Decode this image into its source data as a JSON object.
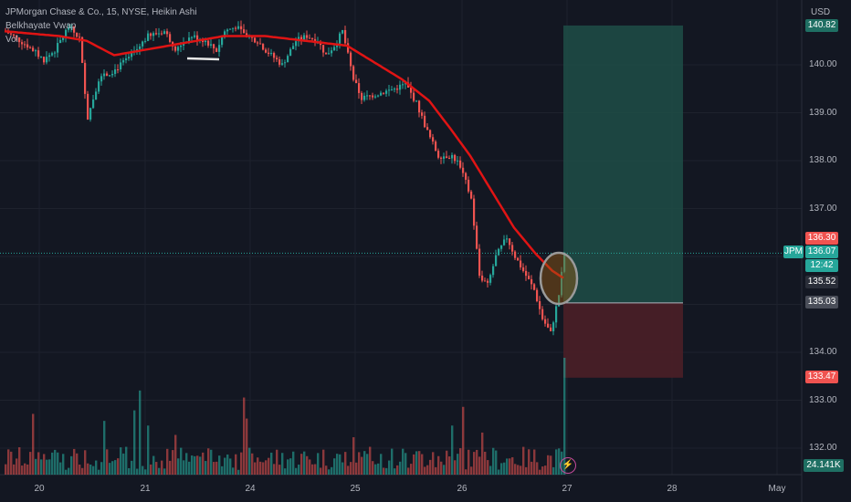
{
  "legend": {
    "title": "JPMorgan Chase & Co., 15, NYSE, Heikin Ashi",
    "indicator1": "Belkhayate Vwap",
    "indicator2": "Vol"
  },
  "axis": {
    "currency": "USD",
    "y_ticks": [
      "140.00",
      "139.00",
      "138.00",
      "137.00",
      "136.00",
      "135.00",
      "134.00",
      "133.00",
      "132.00"
    ],
    "x_ticks": [
      "20",
      "21",
      "24",
      "25",
      "26",
      "27",
      "28",
      "May"
    ]
  },
  "tags": {
    "top": "140.82",
    "stop_upper": "136.30",
    "symbol": "JPM",
    "last_price": "136.07",
    "countdown": "12:42",
    "price2": "135.52",
    "entry": "135.03",
    "stop": "133.47",
    "volume": "24.141K"
  },
  "colors": {
    "background": "#131722",
    "up": "#26a69a",
    "down": "#ef5350",
    "vwap": "#e01414",
    "target_zone": "#1e4d46",
    "stop_zone": "#4b1f27"
  },
  "chart_data": {
    "type": "candlestick",
    "symbol": "JPM",
    "interval": "15",
    "ylim": [
      131.6,
      141.2
    ],
    "x_labels": [
      "20",
      "21",
      "24",
      "25",
      "26",
      "27",
      "28",
      "May"
    ],
    "price_anchors": [
      {
        "bar": 0,
        "price": 140.7
      },
      {
        "bar": 8,
        "price": 140.4
      },
      {
        "bar": 14,
        "price": 140.1
      },
      {
        "bar": 18,
        "price": 140.3
      },
      {
        "bar": 23,
        "price": 140.8
      },
      {
        "bar": 27,
        "price": 140.55
      },
      {
        "bar": 30,
        "price": 138.9
      },
      {
        "bar": 34,
        "price": 139.7
      },
      {
        "bar": 40,
        "price": 139.9
      },
      {
        "bar": 46,
        "price": 140.2
      },
      {
        "bar": 52,
        "price": 140.6
      },
      {
        "bar": 58,
        "price": 140.7
      },
      {
        "bar": 62,
        "price": 140.35
      },
      {
        "bar": 68,
        "price": 140.6
      },
      {
        "bar": 73,
        "price": 140.5
      },
      {
        "bar": 77,
        "price": 140.3
      },
      {
        "bar": 80,
        "price": 140.7
      },
      {
        "bar": 84,
        "price": 140.8
      },
      {
        "bar": 88,
        "price": 140.6
      },
      {
        "bar": 92,
        "price": 140.5
      },
      {
        "bar": 95,
        "price": 140.3
      },
      {
        "bar": 101,
        "price": 140.0
      },
      {
        "bar": 106,
        "price": 140.5
      },
      {
        "bar": 110,
        "price": 140.6
      },
      {
        "bar": 114,
        "price": 140.5
      },
      {
        "bar": 117,
        "price": 140.2
      },
      {
        "bar": 120,
        "price": 140.4
      },
      {
        "bar": 123,
        "price": 140.7
      },
      {
        "bar": 127,
        "price": 139.7
      },
      {
        "bar": 130,
        "price": 139.3
      },
      {
        "bar": 136,
        "price": 139.4
      },
      {
        "bar": 142,
        "price": 139.5
      },
      {
        "bar": 146,
        "price": 139.6
      },
      {
        "bar": 150,
        "price": 139.2
      },
      {
        "bar": 154,
        "price": 138.6
      },
      {
        "bar": 158,
        "price": 138.1
      },
      {
        "bar": 163,
        "price": 138.1
      },
      {
        "bar": 166,
        "price": 137.9
      },
      {
        "bar": 170,
        "price": 137.2
      },
      {
        "bar": 173,
        "price": 135.6
      },
      {
        "bar": 176,
        "price": 135.4
      },
      {
        "bar": 179,
        "price": 136.0
      },
      {
        "bar": 183,
        "price": 136.4
      },
      {
        "bar": 186,
        "price": 136.0
      },
      {
        "bar": 190,
        "price": 135.6
      },
      {
        "bar": 193,
        "price": 135.3
      },
      {
        "bar": 196,
        "price": 134.7
      },
      {
        "bar": 199,
        "price": 134.4
      },
      {
        "bar": 202,
        "price": 135.2
      },
      {
        "bar": 204,
        "price": 136.07
      }
    ],
    "vwap_anchors": [
      {
        "bar": 0,
        "price": 140.7
      },
      {
        "bar": 20,
        "price": 140.6
      },
      {
        "bar": 30,
        "price": 140.5
      },
      {
        "bar": 40,
        "price": 140.2
      },
      {
        "bar": 60,
        "price": 140.4
      },
      {
        "bar": 80,
        "price": 140.6
      },
      {
        "bar": 95,
        "price": 140.6
      },
      {
        "bar": 110,
        "price": 140.5
      },
      {
        "bar": 125,
        "price": 140.4
      },
      {
        "bar": 135,
        "price": 140.05
      },
      {
        "bar": 145,
        "price": 139.7
      },
      {
        "bar": 155,
        "price": 139.25
      },
      {
        "bar": 163,
        "price": 138.65
      },
      {
        "bar": 170,
        "price": 138.1
      },
      {
        "bar": 178,
        "price": 137.35
      },
      {
        "bar": 186,
        "price": 136.6
      },
      {
        "bar": 194,
        "price": 136.05
      },
      {
        "bar": 200,
        "price": 135.7
      },
      {
        "bar": 204,
        "price": 135.55
      }
    ],
    "volume_spikes": [
      {
        "bar": 10,
        "value": 0.52
      },
      {
        "bar": 36,
        "value": 0.46
      },
      {
        "bar": 47,
        "value": 0.55
      },
      {
        "bar": 49,
        "value": 0.72
      },
      {
        "bar": 52,
        "value": 0.42
      },
      {
        "bar": 62,
        "value": 0.34
      },
      {
        "bar": 87,
        "value": 0.66
      },
      {
        "bar": 88,
        "value": 0.48
      },
      {
        "bar": 127,
        "value": 0.32
      },
      {
        "bar": 163,
        "value": 0.42
      },
      {
        "bar": 167,
        "value": 0.58
      },
      {
        "bar": 174,
        "value": 0.36
      },
      {
        "bar": 204,
        "value": 1.0
      }
    ],
    "long_position": {
      "entry": 135.03,
      "target": 140.82,
      "stop": 133.47
    },
    "current_price": 136.07
  }
}
